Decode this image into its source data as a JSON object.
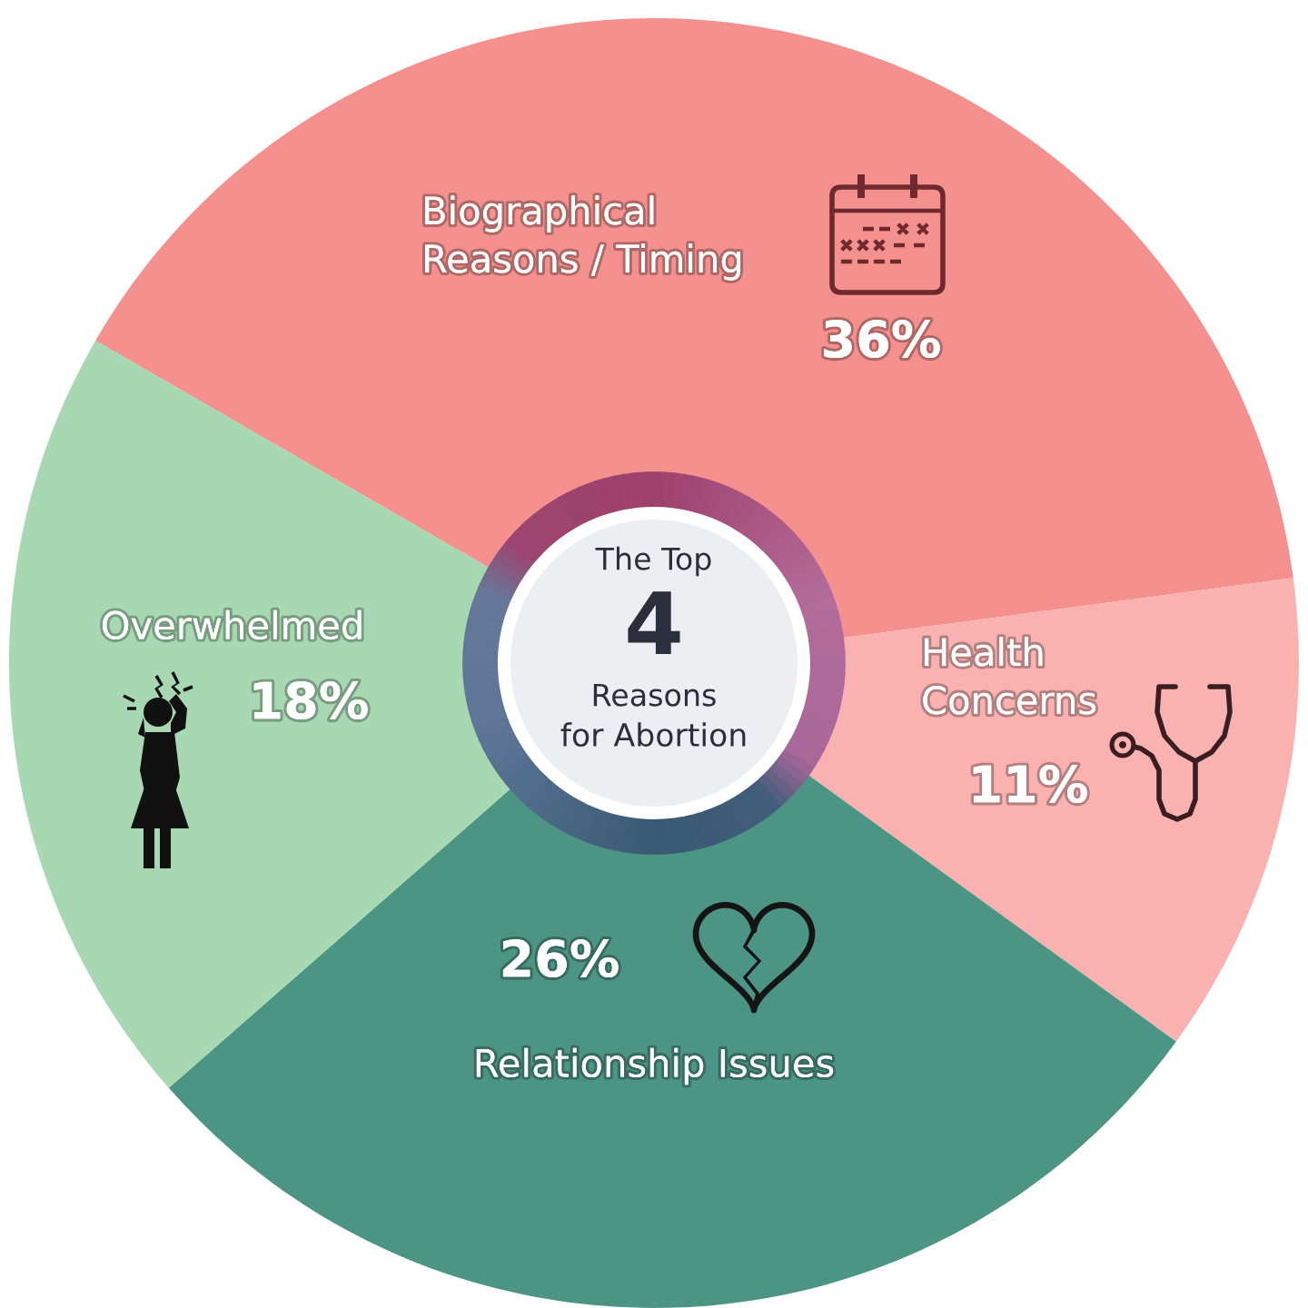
{
  "chart_data": {
    "type": "donut",
    "title": "The Top\n4\nReasons\nfor Abortion",
    "categories": [
      "Biographical\nReasons / Timing",
      "Health\nConcerns",
      "Relationship Issues",
      "Overwhelmed"
    ],
    "values": [
      36,
      11,
      26,
      18
    ],
    "colors": [
      "#f4908d",
      "#f9b2b0",
      "#4c9585",
      "#a7d8b1"
    ],
    "value_labels": [
      "36%",
      "11%",
      "26%",
      "18%"
    ]
  }
}
